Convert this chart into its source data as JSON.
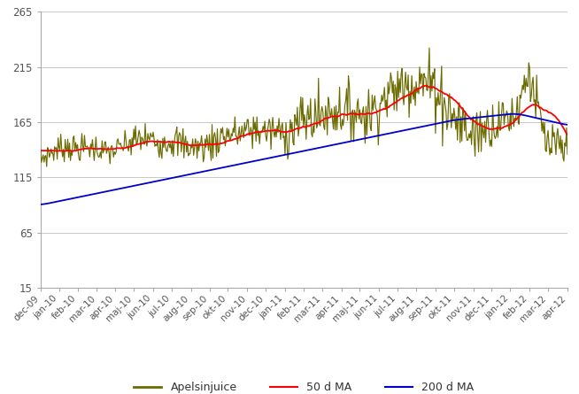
{
  "title": "",
  "ylabel": "",
  "xlabel": "",
  "ylim": [
    15,
    265
  ],
  "yticks": [
    15,
    65,
    115,
    165,
    215,
    265
  ],
  "bg_color": "#ffffff",
  "grid_color": "#c8c8c8",
  "line_color_juice": "#6b6b00",
  "line_color_50ma": "#ff0000",
  "line_color_200ma": "#0000cc",
  "legend_labels": [
    "Apelsinjuice",
    "50 d MA",
    "200 d MA"
  ],
  "x_tick_labels": [
    "dec-09",
    "jan-10",
    "feb-10",
    "mar-10",
    "apr-10",
    "maj-10",
    "jun-10",
    "jul-10",
    "aug-10",
    "sep-10",
    "okt-10",
    "nov-10",
    "dec-10",
    "jan-11",
    "feb-11",
    "mar-11",
    "apr-11",
    "maj-11",
    "jun-11",
    "jul-11",
    "aug-11",
    "sep-11",
    "okt-11",
    "nov-11",
    "dec-11",
    "jan-12",
    "feb-12",
    "mar-12",
    "apr-12"
  ],
  "n_months": 28
}
